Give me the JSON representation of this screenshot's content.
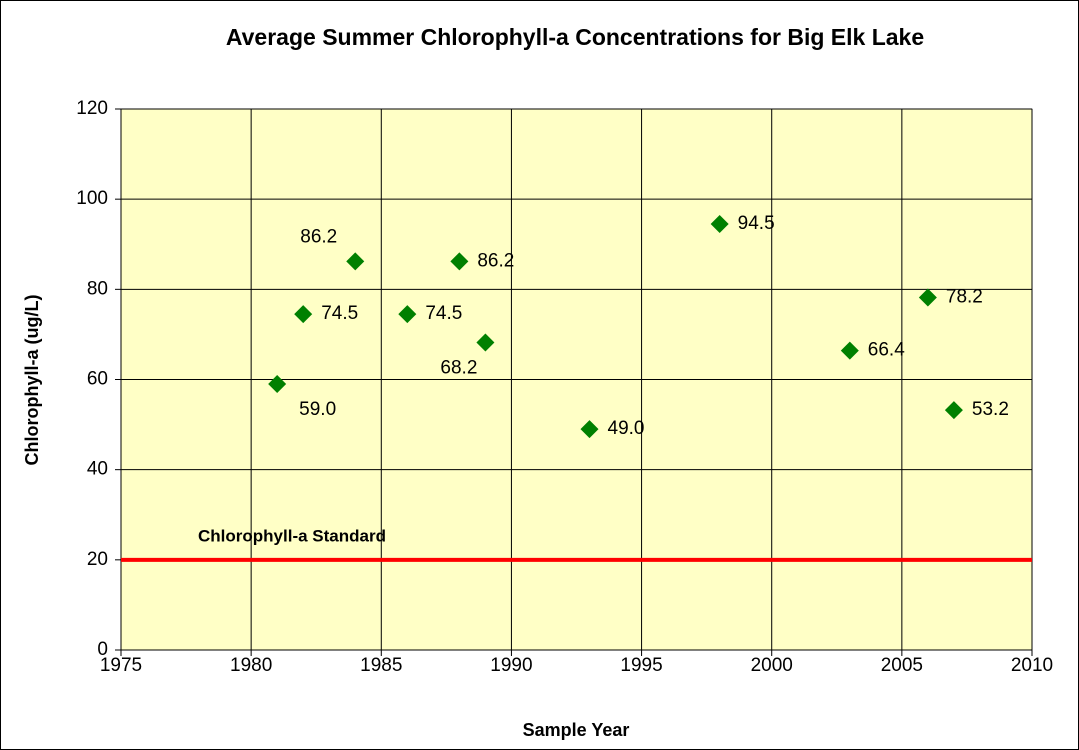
{
  "chart_data": {
    "type": "scatter",
    "title": "Average Summer Chlorophyll-a Concentrations for Big Elk Lake",
    "xlabel": "Sample Year",
    "ylabel": "Chlorophyll-a (ug/L)",
    "x": [
      1981,
      1982,
      1984,
      1986,
      1988,
      1989,
      1993,
      1998,
      2003,
      2006,
      2007
    ],
    "series": [
      {
        "name": "Chlorophyll-a",
        "color": "#008000",
        "values": [
          59.0,
          74.5,
          86.2,
          74.5,
          86.2,
          68.2,
          49.0,
          94.5,
          66.4,
          78.2,
          53.2
        ],
        "value_labels": [
          "59.0",
          "74.5",
          "86.2",
          "74.5",
          "86.2",
          "68.2",
          "49.0",
          "94.5",
          "66.4",
          "78.2",
          "53.2"
        ]
      }
    ],
    "reference_line": {
      "value": 20,
      "label": "Chlorophyll-a Standard",
      "color": "#ff0000"
    },
    "xlim": [
      1975,
      2010
    ],
    "xticks": [
      1975,
      1980,
      1985,
      1990,
      1995,
      2000,
      2005,
      2010
    ],
    "ylim": [
      0,
      120
    ],
    "yticks": [
      0,
      20,
      40,
      60,
      80,
      100,
      120
    ],
    "grid": true
  }
}
